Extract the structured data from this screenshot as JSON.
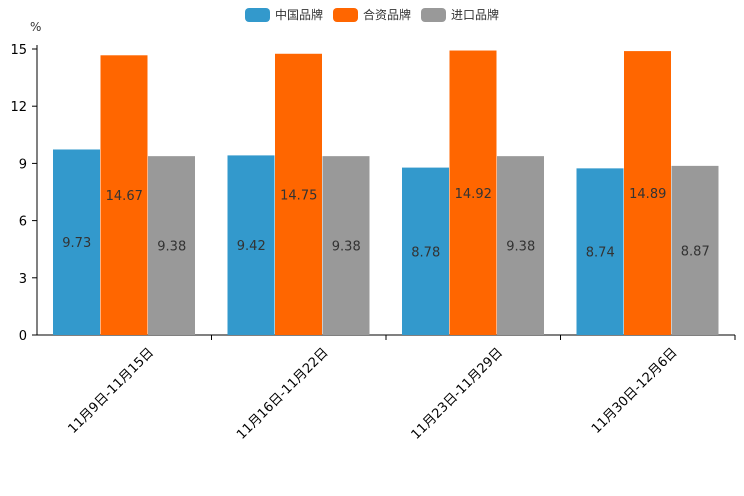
{
  "chart_data": {
    "type": "bar",
    "unit": "%",
    "categories": [
      "11月9日-11月15日",
      "11月16日-11月22日",
      "11月23日-11月29日",
      "11月30日-12月6日"
    ],
    "series": [
      {
        "name": "中国品牌",
        "color": "#3399cc",
        "values": [
          9.73,
          9.42,
          8.78,
          8.74
        ]
      },
      {
        "name": "合资品牌",
        "color": "#ff6600",
        "values": [
          14.67,
          14.75,
          14.92,
          14.89
        ]
      },
      {
        "name": "进口品牌",
        "color": "#999999",
        "values": [
          9.38,
          9.38,
          9.38,
          8.87
        ]
      }
    ],
    "ylim": [
      0,
      15
    ],
    "yticks": [
      0,
      3,
      6,
      9,
      12,
      15
    ],
    "ytick_labels": [
      "0",
      "3",
      "6",
      "9",
      "12",
      "15"
    ],
    "xlabel": "",
    "ylabel": "%",
    "legend_position": "top-center",
    "grid": false
  }
}
